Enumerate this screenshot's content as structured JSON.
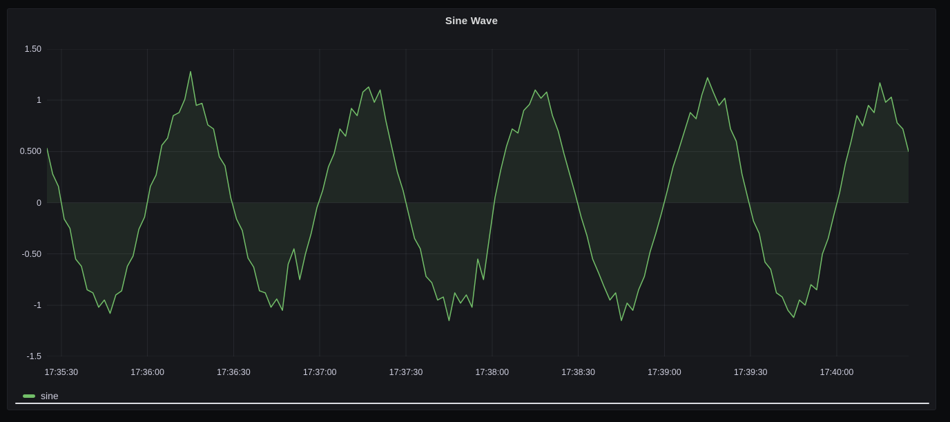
{
  "panel": {
    "title": "Sine Wave"
  },
  "legend": {
    "items": [
      {
        "label": "sine",
        "color": "#73BF69"
      }
    ]
  },
  "colors": {
    "series_green": "#73BF69",
    "series_fill": "rgba(115,191,105,0.10)",
    "grid": "rgba(204,204,220,0.09)",
    "tick_text": "#ccccdc",
    "title_text": "#d8d9da",
    "panel_bg": "#17181c",
    "page_bg": "#0b0c0e"
  },
  "chart_data": {
    "type": "line",
    "title": "Sine Wave",
    "xlabel": "",
    "ylabel": "",
    "grid": true,
    "legend_position": "bottom-left",
    "ylim": [
      -1.5,
      1.5
    ],
    "x_range_seconds": [
      0,
      300
    ],
    "x_start_time": "17:35:25",
    "x_end_time": "17:40:25",
    "yticks": [
      {
        "v": 1.5,
        "label": "1.50"
      },
      {
        "v": 1,
        "label": "1"
      },
      {
        "v": 0.5,
        "label": "0.500"
      },
      {
        "v": 0,
        "label": "0"
      },
      {
        "v": -0.5,
        "label": "-0.50"
      },
      {
        "v": -1,
        "label": "-1"
      },
      {
        "v": -1.5,
        "label": "-1.5"
      }
    ],
    "xticks": [
      {
        "t": 5,
        "label": "17:35:30"
      },
      {
        "t": 35,
        "label": "17:36:00"
      },
      {
        "t": 65,
        "label": "17:36:30"
      },
      {
        "t": 95,
        "label": "17:37:00"
      },
      {
        "t": 125,
        "label": "17:37:30"
      },
      {
        "t": 155,
        "label": "17:38:00"
      },
      {
        "t": 185,
        "label": "17:38:30"
      },
      {
        "t": 215,
        "label": "17:39:00"
      },
      {
        "t": 245,
        "label": "17:39:30"
      },
      {
        "t": 275,
        "label": "17:40:00"
      }
    ],
    "series": [
      {
        "name": "sine",
        "color": "#73BF69",
        "fill_to_zero": true,
        "fill_opacity": 0.1,
        "x_start_seconds": 0,
        "x_step_seconds": 2,
        "values": [
          0.53,
          0.28,
          0.16,
          -0.16,
          -0.25,
          -0.55,
          -0.62,
          -0.85,
          -0.88,
          -1.02,
          -0.95,
          -1.08,
          -0.9,
          -0.86,
          -0.62,
          -0.52,
          -0.26,
          -0.14,
          0.16,
          0.27,
          0.56,
          0.63,
          0.85,
          0.88,
          1.01,
          1.28,
          0.95,
          0.97,
          0.76,
          0.72,
          0.45,
          0.36,
          0.05,
          -0.16,
          -0.27,
          -0.54,
          -0.63,
          -0.86,
          -0.88,
          -1.02,
          -0.94,
          -1.05,
          -0.6,
          -0.45,
          -0.75,
          -0.5,
          -0.3,
          -0.05,
          0.12,
          0.35,
          0.48,
          0.72,
          0.65,
          0.92,
          0.85,
          1.08,
          1.13,
          0.98,
          1.1,
          0.8,
          0.55,
          0.3,
          0.12,
          -0.12,
          -0.35,
          -0.45,
          -0.72,
          -0.78,
          -0.95,
          -0.92,
          -1.15,
          -0.88,
          -0.98,
          -0.9,
          -1.02,
          -0.55,
          -0.75,
          -0.35,
          0.05,
          0.32,
          0.55,
          0.72,
          0.68,
          0.9,
          0.96,
          1.1,
          1.02,
          1.08,
          0.85,
          0.7,
          0.48,
          0.28,
          0.08,
          -0.14,
          -0.32,
          -0.55,
          -0.68,
          -0.82,
          -0.95,
          -0.88,
          -1.15,
          -0.98,
          -1.05,
          -0.85,
          -0.72,
          -0.48,
          -0.3,
          -0.1,
          0.12,
          0.35,
          0.52,
          0.7,
          0.88,
          0.82,
          1.05,
          1.22,
          1.08,
          0.95,
          1.02,
          0.72,
          0.6,
          0.28,
          0.05,
          -0.18,
          -0.3,
          -0.58,
          -0.65,
          -0.88,
          -0.92,
          -1.05,
          -1.12,
          -0.95,
          -1.0,
          -0.8,
          -0.85,
          -0.5,
          -0.35,
          -0.12,
          0.1,
          0.38,
          0.6,
          0.85,
          0.75,
          0.95,
          0.88,
          1.17,
          0.98,
          1.03,
          0.78,
          0.72,
          0.5
        ]
      }
    ]
  }
}
